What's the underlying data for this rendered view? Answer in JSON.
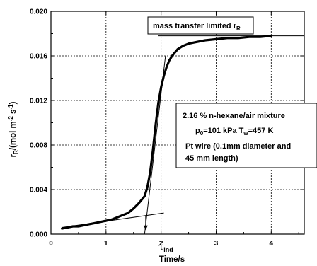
{
  "chart_data": {
    "type": "line",
    "xlabel": "Time/s",
    "ylabel_main": "r",
    "ylabel_sub": "R",
    "ylabel_rest": "/(mol m",
    "ylabel_exp1": "-2",
    "ylabel_mid": " s",
    "ylabel_exp2": "-1",
    "ylabel_end": ")",
    "xlim": [
      0,
      4.6
    ],
    "ylim": [
      0,
      0.02
    ],
    "xticks": [
      "0",
      "1",
      "2",
      "3",
      "4"
    ],
    "xtick_values": [
      0,
      1,
      2,
      3,
      4
    ],
    "yticks": [
      "0.000",
      "0.004",
      "0.008",
      "0.012",
      "0.016",
      "0.020"
    ],
    "ytick_values": [
      0,
      0.004,
      0.008,
      0.012,
      0.016,
      0.02
    ],
    "grid": true,
    "series": [
      {
        "x": [
          0.2,
          0.3,
          0.4,
          0.5,
          0.6,
          0.7,
          0.8,
          0.9,
          1.0,
          1.1,
          1.2,
          1.3,
          1.4,
          1.5,
          1.6,
          1.7,
          1.75,
          1.8,
          1.85,
          1.9,
          1.95,
          2.0,
          2.05,
          2.1,
          2.15,
          2.2,
          2.3,
          2.4,
          2.5,
          2.6,
          2.8,
          3.0,
          3.2,
          3.4,
          3.6,
          3.8,
          4.0
        ],
        "y": [
          0.0005,
          0.0006,
          0.0007,
          0.0007,
          0.0008,
          0.0009,
          0.001,
          0.0011,
          0.0012,
          0.0013,
          0.0015,
          0.0017,
          0.0019,
          0.0023,
          0.0028,
          0.0034,
          0.0042,
          0.0055,
          0.0075,
          0.0098,
          0.0118,
          0.0132,
          0.0142,
          0.015,
          0.0156,
          0.016,
          0.0166,
          0.0169,
          0.0171,
          0.0172,
          0.0174,
          0.0175,
          0.0176,
          0.0176,
          0.0177,
          0.0177,
          0.0178
        ]
      }
    ],
    "tangent_lines": [
      {
        "x": [
          0.2,
          2.05
        ],
        "y": [
          0.0006,
          0.0019
        ]
      },
      {
        "x": [
          1.7,
          2.08
        ],
        "y": [
          0.0,
          0.016
        ]
      }
    ],
    "plateau_line": {
      "x": [
        1.95,
        4.6
      ],
      "y": [
        0.0178,
        0.0178
      ]
    },
    "tau_marker": {
      "x": 1.72,
      "y_from": 0.0017,
      "y_to": 0.0004
    },
    "annotations": {
      "plateau_label_main": "mass transfer limited r",
      "plateau_label_sub": "R",
      "tau_main": "τ",
      "tau_sub": "ind",
      "info_line1": "2.16 % n-hexane/air mixture",
      "info_line2_a": "p",
      "info_line2_a_sub": "0",
      "info_line2_b": "=101 kPa T",
      "info_line2_b_sub": "w",
      "info_line2_c": "=457 K",
      "info_line3": "Pt wire (0.1mm diameter and",
      "info_line4": "45 mm length)"
    }
  }
}
